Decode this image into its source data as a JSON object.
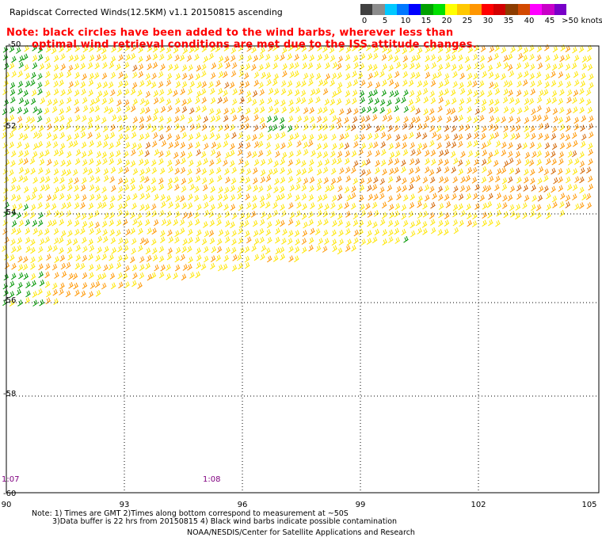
{
  "title": "Rapidscat Corrected Winds(12.5KM) v1.1 20150815 ascending",
  "note_line1": "Note: black circles have been added to the wind barbs, wherever less than",
  "note_line2": "optimal wind retrieval conditions are met due to the ISS attitude changes.",
  "scale": {
    "labels": [
      "0",
      "5",
      "10",
      "15",
      "20",
      "25",
      "30",
      "35",
      "40",
      "45",
      ">50 knots"
    ],
    "colors": [
      "#404040",
      "#8c8c8c",
      "#00c8ff",
      "#0078ff",
      "#0000ff",
      "#00a000",
      "#00e000",
      "#ffff00",
      "#ffc800",
      "#ff9600",
      "#ff0000",
      "#d20000",
      "#8c3c00",
      "#d24800",
      "#ff00ff",
      "#c800c8",
      "#7800c8"
    ]
  },
  "latitudes": [
    "-50",
    "-52",
    "-54",
    "-56",
    "-58",
    "-60"
  ],
  "longitudes": [
    "90",
    "93",
    "96",
    "99",
    "102",
    "105"
  ],
  "times": [
    "1:07",
    "1:08"
  ],
  "footnotes": [
    "Note: 1) Times are GMT 2)Times along bottom correspond to measurement at ~50S",
    "3)Data buffer is 22 hrs from 20150815 4) Black wind barbs indicate possible contamination"
  ],
  "credit": "NOAA/NESDIS/Center for Satellite Applications and Research",
  "barb_colors": {
    "green": "#009600",
    "yellow": "#ffe600",
    "orange": "#ff9600",
    "darkorange": "#d26400"
  }
}
